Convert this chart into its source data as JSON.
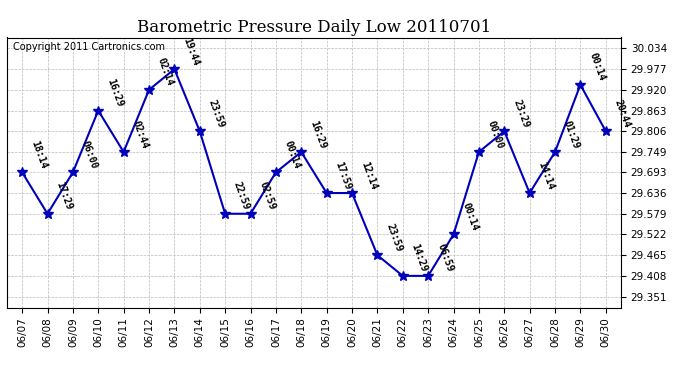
{
  "title": "Barometric Pressure Daily Low 20110701",
  "copyright": "Copyright 2011 Cartronics.com",
  "dates": [
    "06/07",
    "06/08",
    "06/09",
    "06/10",
    "06/11",
    "06/12",
    "06/13",
    "06/14",
    "06/15",
    "06/16",
    "06/17",
    "06/18",
    "06/19",
    "06/20",
    "06/21",
    "06/22",
    "06/23",
    "06/24",
    "06/25",
    "06/26",
    "06/27",
    "06/28",
    "06/29",
    "06/30"
  ],
  "values": [
    29.693,
    29.579,
    29.693,
    29.863,
    29.749,
    29.92,
    29.977,
    29.806,
    29.579,
    29.579,
    29.693,
    29.749,
    29.636,
    29.636,
    29.465,
    29.408,
    29.408,
    29.522,
    29.749,
    29.806,
    29.636,
    29.749,
    29.934,
    29.806
  ],
  "labels": [
    "18:14",
    "17:29",
    "06:00",
    "16:29",
    "02:44",
    "02:14",
    "19:44",
    "23:59",
    "22:59",
    "02:59",
    "00:14",
    "16:29",
    "17:59",
    "12:14",
    "23:59",
    "14:29",
    "06:59",
    "00:14",
    "00:00",
    "23:29",
    "14:14",
    "01:29",
    "00:14",
    "20:44"
  ],
  "yticks": [
    29.351,
    29.408,
    29.465,
    29.522,
    29.579,
    29.636,
    29.693,
    29.749,
    29.806,
    29.863,
    29.92,
    29.977,
    30.034
  ],
  "ylim": [
    29.321,
    30.064
  ],
  "xlim": [
    -0.6,
    23.6
  ],
  "line_color": "#0000bb",
  "marker_color": "#0000bb",
  "bg_color": "#ffffff",
  "grid_color": "#bbbbbb",
  "title_fontsize": 12,
  "label_fontsize": 7,
  "tick_fontsize": 7.5,
  "copyright_fontsize": 7
}
